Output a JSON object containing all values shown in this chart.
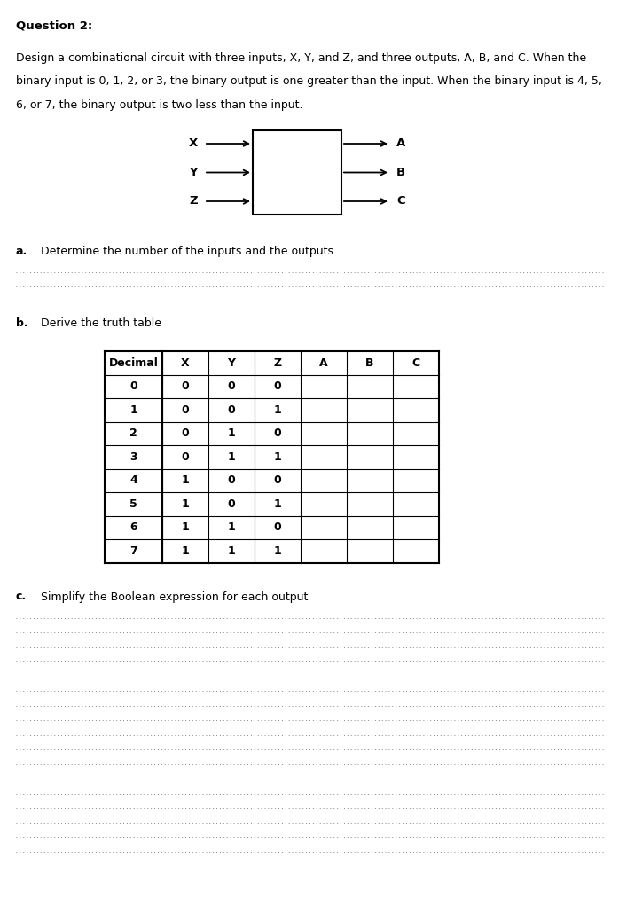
{
  "bg_color": "#ffffff",
  "text_color": "#000000",
  "title": "Question 2:",
  "body_line1": "Design a combinational circuit with three inputs, X, Y, and Z, and three outputs, A, B, and C. When the",
  "body_line2": "binary input is 0, 1, 2, or 3, the binary output is one greater than the input. When the binary input is 4, 5,",
  "body_line3": "6, or 7, the binary output is two less than the input.",
  "section_a_label": "a.",
  "section_a_text": "Determine the number of the inputs and the outputs",
  "section_b_label": "b.",
  "section_b_text": "Derive the truth table",
  "section_c_label": "c.",
  "section_c_text": "Simplify the Boolean expression for each output",
  "table_headers": [
    "Decimal",
    "X",
    "Y",
    "Z",
    "A",
    "B",
    "C"
  ],
  "table_data": [
    [
      "0",
      "0",
      "0",
      "0",
      "",
      "",
      ""
    ],
    [
      "1",
      "0",
      "0",
      "1",
      "",
      "",
      ""
    ],
    [
      "2",
      "0",
      "1",
      "0",
      "",
      "",
      ""
    ],
    [
      "3",
      "0",
      "1",
      "1",
      "",
      "",
      ""
    ],
    [
      "4",
      "1",
      "0",
      "0",
      "",
      "",
      ""
    ],
    [
      "5",
      "1",
      "0",
      "1",
      "",
      "",
      ""
    ],
    [
      "6",
      "1",
      "1",
      "0",
      "",
      "",
      ""
    ],
    [
      "7",
      "1",
      "1",
      "1",
      "",
      "",
      ""
    ]
  ],
  "circuit_inputs": [
    "X",
    "Y",
    "Z"
  ],
  "circuit_outputs": [
    "A",
    "B",
    "C"
  ],
  "num_dotted_lines_a": 2,
  "num_dotted_lines_c": 17,
  "dot_color": "#888888"
}
